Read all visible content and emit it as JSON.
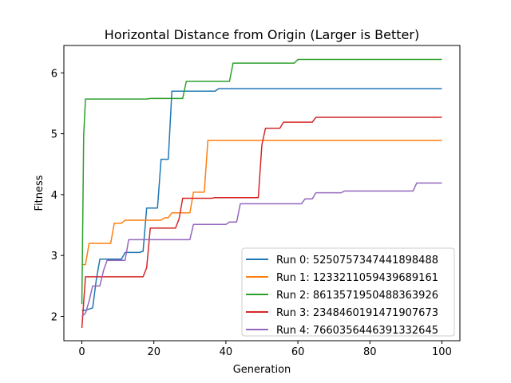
{
  "chart_data": {
    "type": "line",
    "title": "Horizontal Distance from Origin (Larger is Better)",
    "xlabel": "Generation",
    "ylabel": "Fitness",
    "xlim": [
      -5,
      105
    ],
    "ylim": [
      1.6,
      6.45
    ],
    "xticks": [
      0,
      20,
      40,
      60,
      80,
      100
    ],
    "yticks": [
      2,
      3,
      4,
      5,
      6
    ],
    "grid": false,
    "legend_position": "lower-right",
    "series": [
      {
        "name": "Run 0: 5250757347441898488",
        "color": "#1f77b4",
        "points": [
          [
            0,
            2.1
          ],
          [
            1,
            2.1
          ],
          [
            2,
            2.12
          ],
          [
            3,
            2.14
          ],
          [
            4,
            2.6
          ],
          [
            5,
            2.94
          ],
          [
            6,
            2.94
          ],
          [
            11,
            2.94
          ],
          [
            12,
            3.05
          ],
          [
            16,
            3.05
          ],
          [
            17,
            3.07
          ],
          [
            18,
            3.78
          ],
          [
            21,
            3.78
          ],
          [
            22,
            4.58
          ],
          [
            24,
            4.58
          ],
          [
            25,
            5.7
          ],
          [
            37,
            5.7
          ],
          [
            38,
            5.74
          ],
          [
            100,
            5.74
          ]
        ]
      },
      {
        "name": "Run 1: 1233211059439689161",
        "color": "#ff7f0e",
        "points": [
          [
            0,
            2.85
          ],
          [
            1,
            2.85
          ],
          [
            2,
            3.2
          ],
          [
            8,
            3.2
          ],
          [
            9,
            3.53
          ],
          [
            10,
            3.53
          ],
          [
            11,
            3.53
          ],
          [
            12,
            3.58
          ],
          [
            22,
            3.58
          ],
          [
            23,
            3.62
          ],
          [
            24,
            3.62
          ],
          [
            25,
            3.7
          ],
          [
            30,
            3.7
          ],
          [
            31,
            4.04
          ],
          [
            34,
            4.04
          ],
          [
            35,
            4.89
          ],
          [
            100,
            4.89
          ]
        ]
      },
      {
        "name": "Run 2: 8613571950488363926",
        "color": "#2ca02c",
        "points": [
          [
            0,
            2.2
          ],
          [
            0.5,
            4.97
          ],
          [
            1,
            5.57
          ],
          [
            18,
            5.57
          ],
          [
            19,
            5.58
          ],
          [
            28,
            5.58
          ],
          [
            29,
            5.86
          ],
          [
            41,
            5.86
          ],
          [
            42,
            6.16
          ],
          [
            59,
            6.16
          ],
          [
            60,
            6.22
          ],
          [
            100,
            6.22
          ]
        ]
      },
      {
        "name": "Run 3: 2348460191471907673",
        "color": "#d62728",
        "points": [
          [
            0,
            1.81
          ],
          [
            1,
            2.65
          ],
          [
            17,
            2.65
          ],
          [
            18,
            2.8
          ],
          [
            19,
            3.45
          ],
          [
            26,
            3.45
          ],
          [
            27,
            3.6
          ],
          [
            28,
            3.94
          ],
          [
            36,
            3.94
          ],
          [
            37,
            3.95
          ],
          [
            49,
            3.95
          ],
          [
            50,
            4.82
          ],
          [
            51,
            5.09
          ],
          [
            55,
            5.09
          ],
          [
            56,
            5.19
          ],
          [
            64,
            5.19
          ],
          [
            65,
            5.27
          ],
          [
            100,
            5.27
          ]
        ]
      },
      {
        "name": "Run 4: 7660356446391332645",
        "color": "#9467bd",
        "points": [
          [
            0,
            2.0
          ],
          [
            1,
            2.05
          ],
          [
            2,
            2.25
          ],
          [
            3,
            2.5
          ],
          [
            5,
            2.5
          ],
          [
            6,
            2.75
          ],
          [
            7,
            2.92
          ],
          [
            12,
            2.92
          ],
          [
            13,
            3.26
          ],
          [
            30,
            3.26
          ],
          [
            31,
            3.51
          ],
          [
            40,
            3.51
          ],
          [
            41,
            3.55
          ],
          [
            43,
            3.55
          ],
          [
            44,
            3.85
          ],
          [
            61,
            3.85
          ],
          [
            62,
            3.93
          ],
          [
            64,
            3.93
          ],
          [
            65,
            4.03
          ],
          [
            72,
            4.03
          ],
          [
            73,
            4.06
          ],
          [
            92,
            4.06
          ],
          [
            93,
            4.19
          ],
          [
            100,
            4.19
          ]
        ]
      }
    ]
  }
}
